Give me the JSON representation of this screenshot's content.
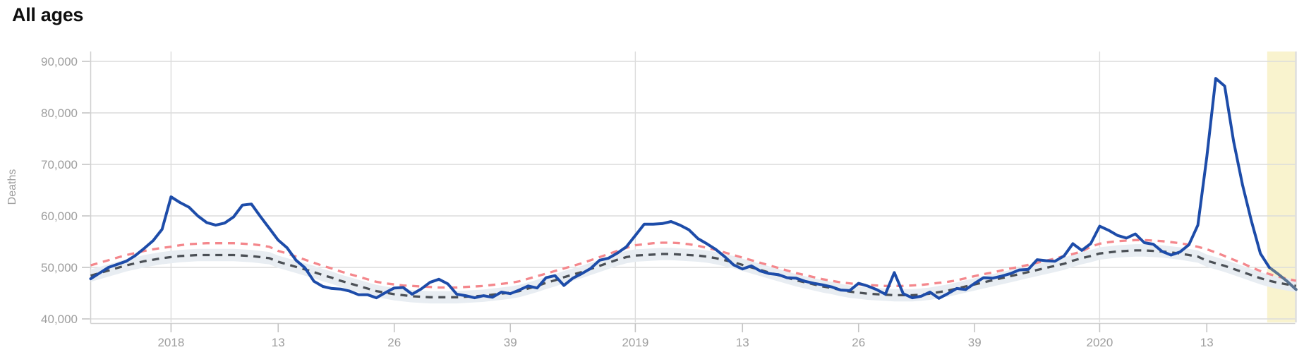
{
  "title": "All ages",
  "colors": {
    "actual_line": "#1d4ca9",
    "actual_line_provisional": "#5a7391",
    "expected_upper_line": "#f4878c",
    "expected_average_line": "#4b5056",
    "expected_band": "#e8edf2",
    "highlight_band": "#f9f3ce",
    "gridline": "#dcdcdc",
    "axis_line": "#cfcfcf",
    "tick_text": "#9e9e9e",
    "title_text": "#0f0f0f"
  },
  "y_axis": {
    "label": "Deaths",
    "tick_values": [
      40000,
      50000,
      60000,
      70000,
      80000,
      90000
    ],
    "tick_labels": [
      "40,000",
      "50,000",
      "60,000",
      "70,000",
      "80,000",
      "90,000"
    ]
  },
  "x_axis": {
    "ticks": [
      {
        "label": "2018",
        "index": 9,
        "is_year": true
      },
      {
        "label": "13",
        "index": 21,
        "is_year": false
      },
      {
        "label": "26",
        "index": 34,
        "is_year": false
      },
      {
        "label": "39",
        "index": 47,
        "is_year": false
      },
      {
        "label": "2019",
        "index": 61,
        "is_year": true
      },
      {
        "label": "13",
        "index": 73,
        "is_year": false
      },
      {
        "label": "26",
        "index": 86,
        "is_year": false
      },
      {
        "label": "39",
        "index": 99,
        "is_year": false
      },
      {
        "label": "2020",
        "index": 113,
        "is_year": true
      },
      {
        "label": "13",
        "index": 125,
        "is_year": false
      }
    ]
  },
  "chart_data": {
    "type": "line",
    "title": "All ages",
    "ylabel": "Deaths",
    "x_unit": "week",
    "x_start": "2017-W44",
    "x_end": "2020-W23",
    "ylim": [
      40000,
      92000
    ],
    "grid": true,
    "band": {
      "around": "expected_average",
      "half_width": 1200
    },
    "highlight": {
      "from_index": 132
    },
    "provisional_from_index": 132,
    "series": [
      {
        "name": "actual_deaths",
        "style": "solid",
        "values": [
          47800,
          48900,
          50000,
          50600,
          51200,
          52300,
          53700,
          55200,
          57400,
          63700,
          62600,
          61700,
          60000,
          58700,
          58200,
          58600,
          59800,
          62100,
          62300,
          59900,
          57600,
          55300,
          53800,
          51400,
          49900,
          47300,
          46300,
          45900,
          45800,
          45400,
          44700,
          44700,
          44100,
          45100,
          46000,
          46100,
          44800,
          45800,
          47100,
          47700,
          46800,
          44800,
          44500,
          44100,
          44500,
          44200,
          45200,
          44900,
          45600,
          46400,
          46000,
          48000,
          48400,
          46500,
          47900,
          48800,
          49800,
          51400,
          51800,
          52800,
          54000,
          56200,
          58400,
          58400,
          58500,
          58900,
          58200,
          57300,
          55600,
          54600,
          53500,
          52100,
          50500,
          49700,
          50300,
          49300,
          48800,
          48600,
          48000,
          47900,
          47300,
          46900,
          46600,
          46200,
          45600,
          45500,
          46900,
          46400,
          45700,
          44800,
          49000,
          44900,
          44100,
          44400,
          45200,
          44000,
          44900,
          45900,
          45700,
          46900,
          48000,
          47900,
          48300,
          48800,
          49500,
          49600,
          51500,
          51300,
          51200,
          52200,
          54600,
          53300,
          54600,
          58000,
          57200,
          56200,
          55700,
          56500,
          54800,
          54500,
          53100,
          52400,
          53000,
          54400,
          58200,
          71500,
          86700,
          85200,
          74500,
          66000,
          59000,
          52700,
          50000,
          48700,
          47300,
          45700
        ]
      },
      {
        "name": "expected_upper",
        "style": "dashed",
        "values": [
          50400,
          50900,
          51400,
          51900,
          52400,
          52800,
          53200,
          53500,
          53800,
          54000,
          54300,
          54500,
          54600,
          54700,
          54700,
          54700,
          54700,
          54600,
          54500,
          54300,
          54000,
          53200,
          52700,
          52100,
          51500,
          50900,
          50300,
          49800,
          49200,
          48700,
          48200,
          47700,
          47200,
          46900,
          46700,
          46500,
          46400,
          46300,
          46200,
          46100,
          46100,
          46100,
          46200,
          46300,
          46400,
          46600,
          46800,
          47000,
          47300,
          47800,
          48300,
          48800,
          49300,
          49800,
          50300,
          50800,
          51400,
          52000,
          52600,
          53200,
          53800,
          54300,
          54500,
          54700,
          54800,
          54800,
          54700,
          54500,
          54200,
          53800,
          53400,
          52900,
          52400,
          51900,
          51400,
          50900,
          50400,
          49900,
          49400,
          48900,
          48500,
          48100,
          47700,
          47400,
          47100,
          46900,
          46700,
          46600,
          46500,
          46400,
          46400,
          46400,
          46500,
          46600,
          46800,
          47000,
          47200,
          47500,
          47900,
          48300,
          48700,
          49000,
          49400,
          49800,
          50100,
          50500,
          50900,
          51300,
          51700,
          52200,
          52600,
          53100,
          54000,
          54600,
          54900,
          55100,
          55200,
          55300,
          55300,
          55200,
          55100,
          54900,
          54700,
          54400,
          54000,
          53500,
          52900,
          52200,
          51500,
          50800,
          50000,
          49300,
          48700,
          48200,
          47800,
          47400
        ]
      },
      {
        "name": "expected_average",
        "style": "dashed",
        "values": [
          48400,
          48900,
          49400,
          49900,
          50400,
          50800,
          51200,
          51500,
          51800,
          52000,
          52200,
          52300,
          52400,
          52400,
          52400,
          52400,
          52400,
          52300,
          52200,
          52000,
          51800,
          51100,
          50600,
          50100,
          49600,
          49100,
          48500,
          48000,
          47400,
          46900,
          46400,
          45900,
          45400,
          45100,
          44800,
          44600,
          44400,
          44300,
          44200,
          44200,
          44200,
          44200,
          44300,
          44400,
          44500,
          44700,
          44900,
          45100,
          45400,
          45900,
          46400,
          47000,
          47500,
          48100,
          48600,
          49100,
          49700,
          50300,
          50900,
          51500,
          52000,
          52300,
          52400,
          52500,
          52600,
          52600,
          52500,
          52400,
          52300,
          52100,
          51800,
          51400,
          51000,
          50500,
          50000,
          49500,
          49000,
          48500,
          48000,
          47500,
          47100,
          46700,
          46300,
          46000,
          45600,
          45300,
          45100,
          44900,
          44800,
          44700,
          44600,
          44600,
          44600,
          44700,
          44900,
          45200,
          45500,
          45900,
          46300,
          46700,
          47100,
          47500,
          47900,
          48300,
          48700,
          49100,
          49500,
          49900,
          50300,
          50700,
          51300,
          51800,
          52200,
          52700,
          52900,
          53100,
          53200,
          53300,
          53300,
          53200,
          53100,
          52900,
          52700,
          52400,
          52100,
          51300,
          50800,
          50300,
          49700,
          49100,
          48500,
          47900,
          47400,
          47000,
          46700,
          46400
        ]
      }
    ]
  }
}
